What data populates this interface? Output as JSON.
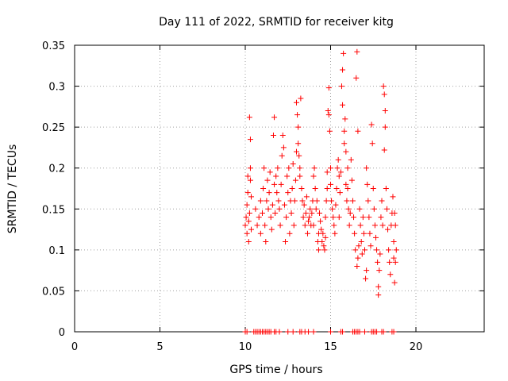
{
  "chart_data": {
    "type": "scatter",
    "title": "Day 111 of 2022, SRMTID for receiver kitg",
    "xlabel": "GPS time / hours",
    "ylabel": "SRMTID / TECUs",
    "xlim": [
      0,
      24
    ],
    "ylim": [
      0,
      0.35
    ],
    "x_ticks": [
      0,
      5,
      10,
      15,
      20
    ],
    "y_ticks": [
      0,
      0.05,
      0.1,
      0.15,
      0.2,
      0.25,
      0.3,
      0.35
    ],
    "x_tick_labels": [
      "0",
      "5",
      "10",
      "15",
      "20"
    ],
    "y_tick_labels": [
      "0",
      "0.05",
      "0.1",
      "0.15",
      "0.2",
      "0.25",
      "0.3",
      "0.35"
    ],
    "grid": true,
    "marker": "plus",
    "marker_color": "#ff0000",
    "series": [
      {
        "points": [
          [
            10.0,
            0.13
          ],
          [
            10.05,
            0.14
          ],
          [
            10.1,
            0.155
          ],
          [
            10.1,
            0.12
          ],
          [
            10.15,
            0.19
          ],
          [
            10.15,
            0.17
          ],
          [
            10.2,
            0.11
          ],
          [
            10.2,
            0.135
          ],
          [
            10.25,
            0.145
          ],
          [
            10.3,
            0.2
          ],
          [
            10.3,
            0.185
          ],
          [
            10.35,
            0.165
          ],
          [
            10.25,
            0.262
          ],
          [
            10.3,
            0.235
          ],
          [
            10.35,
            0.125
          ],
          [
            10.6,
            0.15
          ],
          [
            10.7,
            0.13
          ],
          [
            10.8,
            0.14
          ],
          [
            10.9,
            0.12
          ],
          [
            10.9,
            0.16
          ],
          [
            11.0,
            0.145
          ],
          [
            11.05,
            0.175
          ],
          [
            11.1,
            0.2
          ],
          [
            11.15,
            0.13
          ],
          [
            11.2,
            0.11
          ],
          [
            11.25,
            0.16
          ],
          [
            11.3,
            0.185
          ],
          [
            11.35,
            0.15
          ],
          [
            11.4,
            0.17
          ],
          [
            11.45,
            0.195
          ],
          [
            11.5,
            0.14
          ],
          [
            11.55,
            0.125
          ],
          [
            11.6,
            0.155
          ],
          [
            11.65,
            0.24
          ],
          [
            11.7,
            0.262
          ],
          [
            11.7,
            0.18
          ],
          [
            11.75,
            0.145
          ],
          [
            11.8,
            0.19
          ],
          [
            11.85,
            0.17
          ],
          [
            11.9,
            0.2
          ],
          [
            11.95,
            0.16
          ],
          [
            12.0,
            0.15
          ],
          [
            12.05,
            0.13
          ],
          [
            12.1,
            0.18
          ],
          [
            12.15,
            0.215
          ],
          [
            12.2,
            0.24
          ],
          [
            12.25,
            0.225
          ],
          [
            12.3,
            0.155
          ],
          [
            12.35,
            0.11
          ],
          [
            12.4,
            0.14
          ],
          [
            12.45,
            0.19
          ],
          [
            12.5,
            0.17
          ],
          [
            12.55,
            0.2
          ],
          [
            12.6,
            0.12
          ],
          [
            12.65,
            0.16
          ],
          [
            12.7,
            0.145
          ],
          [
            12.75,
            0.175
          ],
          [
            12.8,
            0.205
          ],
          [
            12.85,
            0.13
          ],
          [
            12.9,
            0.16
          ],
          [
            12.95,
            0.185
          ],
          [
            13.0,
            0.22
          ],
          [
            13.0,
            0.28
          ],
          [
            13.05,
            0.265
          ],
          [
            13.1,
            0.25
          ],
          [
            13.1,
            0.23
          ],
          [
            13.15,
            0.215
          ],
          [
            13.2,
            0.2
          ],
          [
            13.2,
            0.19
          ],
          [
            13.25,
            0.285
          ],
          [
            13.3,
            0.175
          ],
          [
            13.35,
            0.16
          ],
          [
            13.4,
            0.14
          ],
          [
            13.45,
            0.155
          ],
          [
            13.5,
            0.13
          ],
          [
            13.55,
            0.145
          ],
          [
            13.6,
            0.165
          ],
          [
            13.65,
            0.12
          ],
          [
            13.7,
            0.135
          ],
          [
            13.75,
            0.14
          ],
          [
            13.8,
            0.15
          ],
          [
            13.85,
            0.13
          ],
          [
            13.9,
            0.145
          ],
          [
            13.95,
            0.16
          ],
          [
            14.0,
            0.13
          ],
          [
            14.0,
            0.19
          ],
          [
            14.05,
            0.2
          ],
          [
            14.1,
            0.175
          ],
          [
            14.15,
            0.15
          ],
          [
            14.2,
            0.16
          ],
          [
            14.25,
            0.11
          ],
          [
            14.3,
            0.12
          ],
          [
            14.3,
            0.1
          ],
          [
            14.35,
            0.145
          ],
          [
            14.4,
            0.135
          ],
          [
            14.45,
            0.125
          ],
          [
            14.5,
            0.11
          ],
          [
            14.55,
            0.12
          ],
          [
            14.6,
            0.105
          ],
          [
            14.65,
            0.1
          ],
          [
            14.7,
            0.115
          ],
          [
            14.7,
            0.14
          ],
          [
            14.75,
            0.16
          ],
          [
            14.8,
            0.175
          ],
          [
            14.8,
            0.195
          ],
          [
            14.85,
            0.27
          ],
          [
            14.9,
            0.265
          ],
          [
            14.9,
            0.298
          ],
          [
            14.95,
            0.245
          ],
          [
            15.0,
            0.2
          ],
          [
            15.0,
            0.18
          ],
          [
            15.05,
            0.16
          ],
          [
            15.1,
            0.15
          ],
          [
            15.15,
            0.14
          ],
          [
            15.2,
            0.13
          ],
          [
            15.25,
            0.12
          ],
          [
            15.3,
            0.155
          ],
          [
            15.35,
            0.175
          ],
          [
            15.4,
            0.2
          ],
          [
            15.45,
            0.21
          ],
          [
            15.5,
            0.19
          ],
          [
            15.5,
            0.14
          ],
          [
            15.55,
            0.17
          ],
          [
            15.6,
            0.195
          ],
          [
            15.65,
            0.3
          ],
          [
            15.7,
            0.32
          ],
          [
            15.75,
            0.34
          ],
          [
            15.7,
            0.277
          ],
          [
            15.8,
            0.245
          ],
          [
            15.8,
            0.23
          ],
          [
            15.85,
            0.26
          ],
          [
            15.9,
            0.22
          ],
          [
            15.9,
            0.18
          ],
          [
            15.95,
            0.16
          ],
          [
            16.0,
            0.2
          ],
          [
            16.0,
            0.175
          ],
          [
            16.05,
            0.15
          ],
          [
            16.1,
            0.13
          ],
          [
            16.15,
            0.145
          ],
          [
            16.2,
            0.21
          ],
          [
            16.25,
            0.185
          ],
          [
            16.3,
            0.16
          ],
          [
            16.35,
            0.14
          ],
          [
            16.4,
            0.12
          ],
          [
            16.45,
            0.1
          ],
          [
            16.5,
            0.31
          ],
          [
            16.55,
            0.342
          ],
          [
            16.6,
            0.245
          ],
          [
            16.55,
            0.08
          ],
          [
            16.6,
            0.09
          ],
          [
            16.65,
            0.105
          ],
          [
            16.7,
            0.15
          ],
          [
            16.75,
            0.13
          ],
          [
            16.8,
            0.11
          ],
          [
            16.85,
            0.095
          ],
          [
            16.9,
            0.14
          ],
          [
            16.95,
            0.12
          ],
          [
            17.0,
            0.1
          ],
          [
            17.05,
            0.065
          ],
          [
            17.1,
            0.075
          ],
          [
            17.1,
            0.2
          ],
          [
            17.15,
            0.18
          ],
          [
            17.2,
            0.16
          ],
          [
            17.25,
            0.14
          ],
          [
            17.3,
            0.12
          ],
          [
            17.35,
            0.105
          ],
          [
            17.4,
            0.253
          ],
          [
            17.45,
            0.23
          ],
          [
            17.5,
            0.175
          ],
          [
            17.55,
            0.15
          ],
          [
            17.6,
            0.13
          ],
          [
            17.65,
            0.115
          ],
          [
            17.7,
            0.1
          ],
          [
            17.75,
            0.085
          ],
          [
            17.8,
            0.055
          ],
          [
            17.8,
            0.045
          ],
          [
            17.85,
            0.075
          ],
          [
            17.9,
            0.095
          ],
          [
            17.95,
            0.14
          ],
          [
            18.0,
            0.16
          ],
          [
            18.05,
            0.13
          ],
          [
            18.1,
            0.3
          ],
          [
            18.15,
            0.29
          ],
          [
            18.2,
            0.27
          ],
          [
            18.2,
            0.25
          ],
          [
            18.15,
            0.222
          ],
          [
            18.25,
            0.175
          ],
          [
            18.3,
            0.15
          ],
          [
            18.35,
            0.125
          ],
          [
            18.4,
            0.1
          ],
          [
            18.45,
            0.085
          ],
          [
            18.5,
            0.07
          ],
          [
            18.55,
            0.13
          ],
          [
            18.6,
            0.145
          ],
          [
            18.65,
            0.165
          ],
          [
            18.7,
            0.11
          ],
          [
            18.7,
            0.09
          ],
          [
            18.75,
            0.06
          ],
          [
            18.75,
            0.145
          ],
          [
            18.8,
            0.13
          ],
          [
            18.85,
            0.1
          ],
          [
            18.8,
            0.085
          ]
        ]
      },
      {
        "points": [
          [
            10.0,
            0
          ],
          [
            10.1,
            0
          ],
          [
            10.5,
            0
          ],
          [
            10.6,
            0
          ],
          [
            10.7,
            0
          ],
          [
            10.8,
            0
          ],
          [
            10.9,
            0
          ],
          [
            11.0,
            0
          ],
          [
            11.1,
            0
          ],
          [
            11.2,
            0
          ],
          [
            11.3,
            0
          ],
          [
            11.4,
            0
          ],
          [
            11.5,
            0
          ],
          [
            11.7,
            0
          ],
          [
            11.8,
            0
          ],
          [
            12.0,
            0
          ],
          [
            12.5,
            0
          ],
          [
            12.8,
            0
          ],
          [
            13.2,
            0
          ],
          [
            13.3,
            0
          ],
          [
            13.5,
            0
          ],
          [
            13.7,
            0
          ],
          [
            14.0,
            0
          ],
          [
            15.0,
            0
          ],
          [
            15.6,
            0
          ],
          [
            15.7,
            0
          ],
          [
            16.3,
            0
          ],
          [
            16.4,
            0
          ],
          [
            16.5,
            0
          ],
          [
            16.6,
            0
          ],
          [
            16.7,
            0
          ],
          [
            17.0,
            0
          ],
          [
            17.4,
            0
          ],
          [
            17.5,
            0
          ],
          [
            17.6,
            0
          ],
          [
            17.7,
            0
          ],
          [
            18.0,
            0
          ],
          [
            18.1,
            0
          ],
          [
            18.6,
            0
          ],
          [
            18.7,
            0
          ]
        ]
      }
    ]
  }
}
